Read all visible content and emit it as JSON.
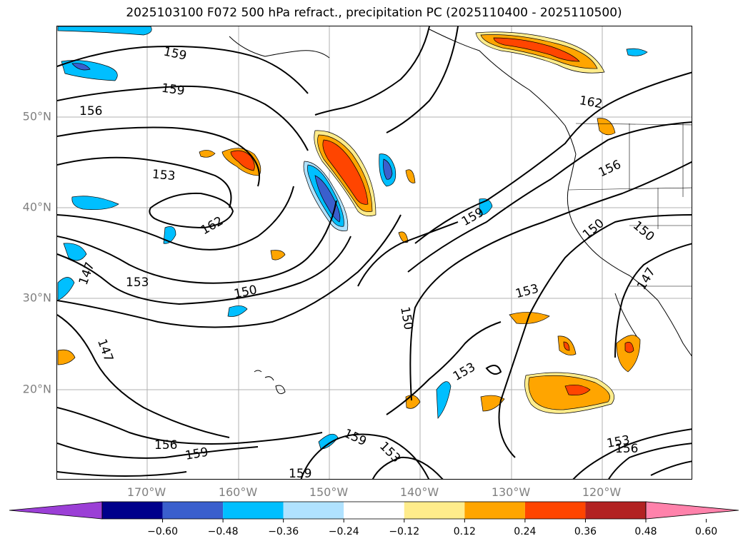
{
  "title": "2025103100 F072 500 hPa refract., precipitation PC (2025110400 - 2025110500)",
  "axes": {
    "lat_labels": [
      "50°N",
      "40°N",
      "30°N",
      "20°N"
    ],
    "lon_labels": [
      "170°W",
      "160°W",
      "150°W",
      "140°W",
      "130°W",
      "120°W"
    ]
  },
  "contour_labels": [
    "159",
    "159",
    "156",
    "153",
    "162",
    "147",
    "153",
    "150",
    "147",
    "156",
    "159",
    "159",
    "150",
    "153",
    "153",
    "159",
    "162",
    "156",
    "150",
    "150",
    "147",
    "153",
    "156",
    "159",
    "153"
  ],
  "colorbar": {
    "ticks": [
      "−0.60",
      "−0.48",
      "−0.36",
      "−0.24",
      "−0.12",
      "0.12",
      "0.24",
      "0.36",
      "0.48",
      "0.60"
    ],
    "colors": [
      "#9b3fd6",
      "#00008b",
      "#3a5fcd",
      "#00bfff",
      "#b0e2ff",
      "#ffffff",
      "#ffec8b",
      "#ffa500",
      "#ff4500",
      "#b22222",
      "#ff82ab"
    ]
  }
}
